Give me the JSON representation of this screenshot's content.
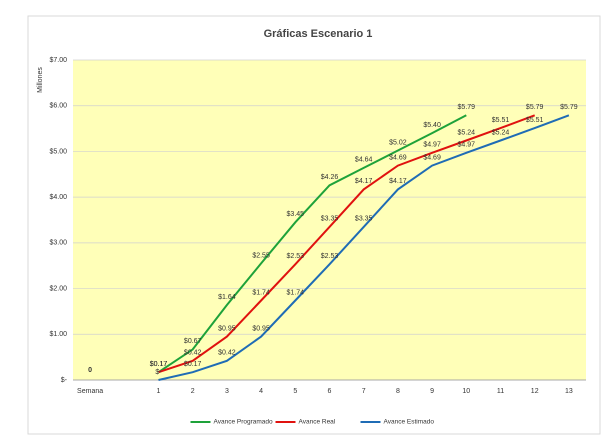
{
  "chart_data": {
    "type": "line",
    "title": "Gráficas Escenario 1",
    "y_label": "Millones",
    "categories": [
      "Semana",
      null,
      "1",
      "2",
      "3",
      "4",
      "5",
      "6",
      "7",
      "8",
      "9",
      "10",
      "11",
      "12",
      "13"
    ],
    "annotation": "0",
    "series": [
      {
        "name": "Avance Programado",
        "color": "#1ea23a",
        "values": [
          null,
          null,
          0.17,
          0.67,
          1.64,
          2.55,
          3.45,
          4.26,
          4.64,
          5.02,
          5.4,
          5.79,
          null,
          null,
          null
        ],
        "value_labels": [
          null,
          null,
          "$0.17",
          "$0.67",
          "$1.64",
          "$2.55",
          "$3.45",
          "$4.26",
          "$4.64",
          "$5.02",
          "$5.40",
          "$5.79",
          null,
          null,
          null
        ]
      },
      {
        "name": "Avance Real",
        "color": "#e0120f",
        "values": [
          null,
          null,
          0.17,
          0.42,
          0.95,
          1.74,
          2.53,
          3.35,
          4.17,
          4.69,
          4.97,
          5.24,
          5.51,
          5.79,
          null
        ],
        "value_labels": [
          null,
          null,
          "$0.17",
          "$0.42",
          "$0.95",
          "$1.74",
          "$2.53",
          "$3.35",
          "$4.17",
          "$4.69",
          "$4.97",
          "$5.24",
          "$5.51",
          "$5.79",
          null
        ]
      },
      {
        "name": "Avance Estimado",
        "color": "#1f6cb5",
        "values": [
          null,
          null,
          0,
          0.17,
          0.42,
          0.95,
          1.74,
          2.53,
          3.35,
          4.17,
          4.69,
          4.97,
          5.24,
          5.51,
          5.79
        ],
        "value_labels": [
          null,
          null,
          "$-",
          "$0.17",
          "$0.42",
          "$0.95",
          "$1.74",
          "$2.53",
          "$3.35",
          "$4.17",
          "$4.69",
          "$4.97",
          "$5.24",
          "$5.51",
          "$5.79"
        ]
      }
    ],
    "ylim": [
      0,
      7
    ],
    "yticks": [
      {
        "value": 0,
        "label": "$-"
      },
      {
        "value": 1,
        "label": "$1.00"
      },
      {
        "value": 2,
        "label": "$2.00"
      },
      {
        "value": 3,
        "label": "$3.00"
      },
      {
        "value": 4,
        "label": "$4.00"
      },
      {
        "value": 5,
        "label": "$5.00"
      },
      {
        "value": 6,
        "label": "$6.00"
      },
      {
        "value": 7,
        "label": "$7.00"
      }
    ],
    "grid": true,
    "legend": "bottom"
  }
}
